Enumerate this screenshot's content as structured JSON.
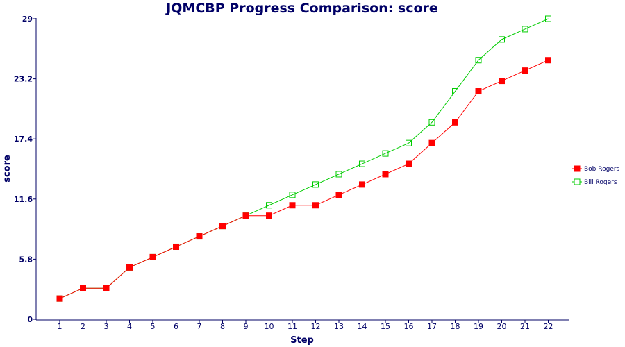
{
  "chart_data": {
    "type": "line",
    "title": "JQMCBP Progress Comparison: score",
    "xlabel": "Step",
    "ylabel": "score",
    "categories": [
      "1",
      "2",
      "3",
      "4",
      "5",
      "6",
      "7",
      "8",
      "9",
      "10",
      "11",
      "12",
      "13",
      "14",
      "15",
      "16",
      "17",
      "18",
      "19",
      "20",
      "21",
      "22"
    ],
    "ylim": [
      0,
      29
    ],
    "yticks": [
      "0",
      "5.8",
      "11.6",
      "17.4",
      "23.2",
      "29"
    ],
    "grid": false,
    "legend_position": "right",
    "series": [
      {
        "name": "Bob Rogers",
        "color": "#ff0000",
        "marker": "filled-square",
        "values": [
          2,
          3,
          3,
          5,
          6,
          7,
          8,
          9,
          10,
          10,
          11,
          11,
          12,
          13,
          14,
          15,
          17,
          19,
          22,
          23,
          24,
          25
        ]
      },
      {
        "name": "Bill Rogers",
        "color": "#00cc00",
        "marker": "hollow-square",
        "values": [
          2,
          3,
          3,
          5,
          6,
          7,
          8,
          9,
          10,
          11,
          12,
          13,
          14,
          15,
          16,
          17,
          19,
          22,
          25,
          27,
          28,
          29
        ]
      }
    ]
  }
}
